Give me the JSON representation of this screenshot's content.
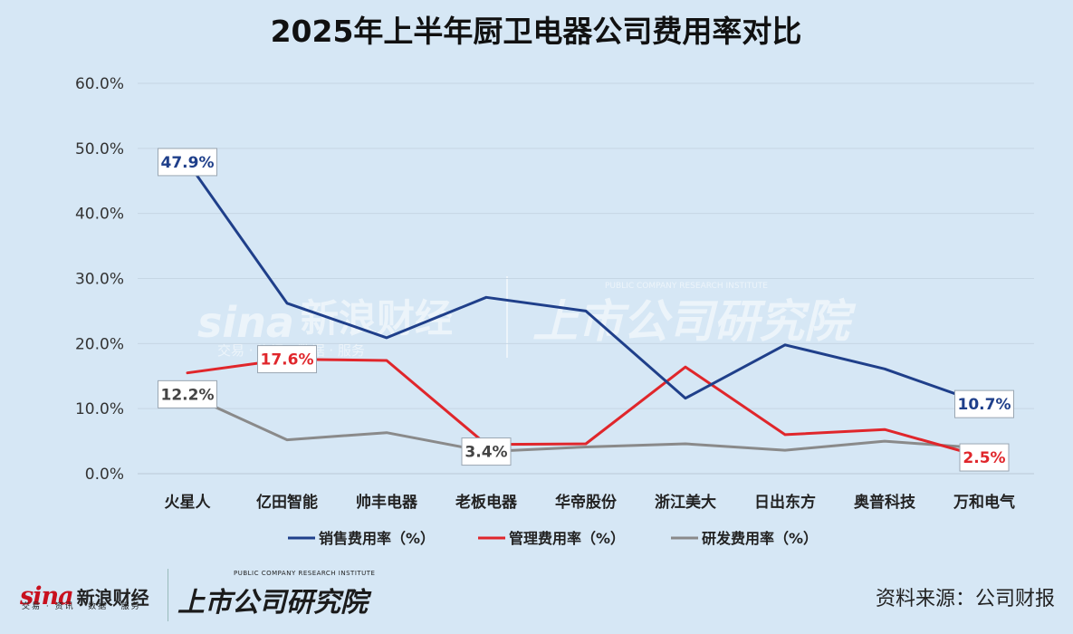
{
  "title": "2025年上半年厨卫电器公司费用率对比",
  "source": "资料来源：公司财报",
  "colors": {
    "background": "#d6e7f5",
    "sales": "#1f3f8a",
    "management": "#e0262b",
    "rnd": "#8a8a8a"
  },
  "watermark": {
    "sina_logo": "sina",
    "sina_cn": "新浪财经",
    "sina_sub": "交易 · 资讯 · 数据 · 服务",
    "inst_en": "PUBLIC COMPANY RESEARCH INSTITUTE",
    "inst_cn": "上市公司研究院"
  },
  "chart_data": {
    "type": "line",
    "title": "2025年上半年厨卫电器公司费用率对比",
    "categories": [
      "火星人",
      "亿田智能",
      "帅丰电器",
      "老板电器",
      "华帝股份",
      "浙江美大",
      "日出东方",
      "奥普科技",
      "万和电气"
    ],
    "series": [
      {
        "name": "销售费用率（%）",
        "color": "#1f3f8a",
        "values": [
          47.9,
          26.2,
          20.9,
          27.1,
          25.0,
          11.6,
          19.8,
          16.1,
          10.7
        ]
      },
      {
        "name": "管理费用率（%）",
        "color": "#e0262b",
        "values": [
          15.5,
          17.6,
          17.4,
          4.5,
          4.6,
          16.4,
          6.0,
          6.8,
          2.5
        ]
      },
      {
        "name": "研发费用率（%）",
        "color": "#8a8a8a",
        "values": [
          12.2,
          5.2,
          6.3,
          3.4,
          4.1,
          4.6,
          3.6,
          5.0,
          3.9
        ]
      }
    ],
    "ylim": [
      0,
      60
    ],
    "yticks": [
      "0.0%",
      "10.0%",
      "20.0%",
      "30.0%",
      "40.0%",
      "50.0%",
      "60.0%"
    ],
    "ytick_values": [
      0,
      10,
      20,
      30,
      40,
      50,
      60
    ],
    "grid": true,
    "legend": "bottom",
    "data_labels": [
      {
        "series": 0,
        "index": 0,
        "text": "47.9%"
      },
      {
        "series": 0,
        "index": 8,
        "text": "10.7%"
      },
      {
        "series": 1,
        "index": 1,
        "text": "17.6%"
      },
      {
        "series": 1,
        "index": 8,
        "text": "2.5%"
      },
      {
        "series": 2,
        "index": 0,
        "text": "12.2%"
      },
      {
        "series": 2,
        "index": 3,
        "text": "3.4%"
      }
    ]
  }
}
